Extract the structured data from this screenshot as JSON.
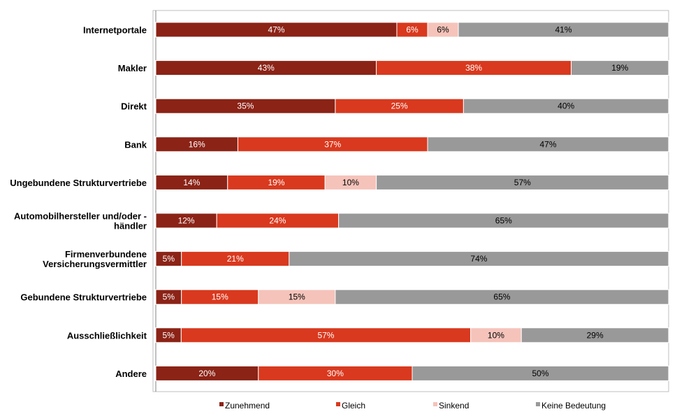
{
  "chart_data": {
    "type": "bar",
    "orientation": "horizontal",
    "stacked": true,
    "categories": [
      [
        "Internetportale"
      ],
      [
        "Makler"
      ],
      [
        "Direkt"
      ],
      [
        "Bank"
      ],
      [
        "Ungebundene  Strukturvertriebe"
      ],
      [
        "Automobilhersteller und/oder -",
        "händler"
      ],
      [
        "Firmenverbundene",
        "Versicherungsvermittler"
      ],
      [
        "Gebundene  Strukturvertriebe"
      ],
      [
        "Ausschließlichkeit"
      ],
      [
        "Andere"
      ]
    ],
    "series": [
      {
        "name": "Zunehmend",
        "color": "#8B2316",
        "text_color": "#ffffff",
        "values": [
          47,
          43,
          35,
          16,
          14,
          12,
          5,
          5,
          5,
          20
        ],
        "labels": [
          "47%",
          "43%",
          "35%",
          "16%",
          "14%",
          "12%",
          "5%",
          "5%",
          "5%",
          "20%"
        ]
      },
      {
        "name": "Gleich",
        "color": "#D9391E",
        "text_color": "#ffffff",
        "values": [
          6,
          38,
          25,
          37,
          19,
          24,
          21,
          15,
          57,
          30
        ],
        "labels": [
          "6%",
          "38%",
          "25%",
          "37%",
          "19%",
          "24%",
          "21%",
          "15%",
          "57%",
          "30%"
        ]
      },
      {
        "name": "Sinkend",
        "color": "#F5C3BA",
        "text_color": "#000000",
        "values": [
          6,
          0,
          0,
          0,
          10,
          0,
          0,
          15,
          10,
          0
        ],
        "labels": [
          "6%",
          "",
          "",
          "",
          "10%",
          "",
          "",
          "15%",
          "10%",
          ""
        ]
      },
      {
        "name": "Keine Bedeutung",
        "color": "#999999",
        "text_color": "#000000",
        "values": [
          41,
          19,
          40,
          47,
          57,
          65,
          74,
          65,
          29,
          50
        ],
        "labels": [
          "41%",
          "19%",
          "40%",
          "47%",
          "57%",
          "65%",
          "74%",
          "65%",
          "29%",
          "50%"
        ]
      }
    ],
    "legend_position": "bottom",
    "grid": false
  }
}
